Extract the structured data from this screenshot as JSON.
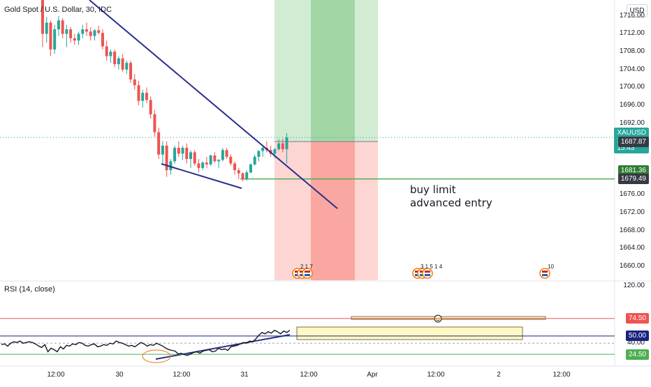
{
  "header": {
    "title": "Gold Spot / U.S. Dollar, 30, IDC",
    "currency": "USD",
    "rsi_title": "RSI (14, close)"
  },
  "annotation": {
    "line1": "buy limit",
    "line2": "advanced entry"
  },
  "price_axis": {
    "ticks": [
      {
        "v": 1716,
        "t": "1716.00"
      },
      {
        "v": 1712,
        "t": "1712.00"
      },
      {
        "v": 1708,
        "t": "1708.00"
      },
      {
        "v": 1704,
        "t": "1704.00"
      },
      {
        "v": 1700,
        "t": "1700.00"
      },
      {
        "v": 1696,
        "t": "1696.00"
      },
      {
        "v": 1692,
        "t": "1692.00"
      },
      {
        "v": 1676,
        "t": "1676.00"
      },
      {
        "v": 1672,
        "t": "1672.00"
      },
      {
        "v": 1668,
        "t": "1668.00"
      },
      {
        "v": 1664,
        "t": "1664.00"
      },
      {
        "v": 1660,
        "t": "1660.00"
      }
    ]
  },
  "rsi_axis": {
    "ticks": [
      {
        "v": 120,
        "t": "120.00"
      },
      {
        "v": 40,
        "t": "40.00"
      }
    ]
  },
  "badges": [
    {
      "name": "xauusd-price-badge",
      "lines": [
        "XAUUSD",
        "1688.82",
        "15:43"
      ],
      "v": 1688.82,
      "color": "#26a69a",
      "axis": "price"
    },
    {
      "name": "stop-price-badge",
      "lines": [
        "1687.87"
      ],
      "v": 1687.87,
      "color": "#363a45",
      "axis": "price"
    },
    {
      "name": "level-1681-badge",
      "lines": [
        "1681.36"
      ],
      "v": 1681.36,
      "color": "#2e7d32",
      "axis": "price"
    },
    {
      "name": "entry-level-badge",
      "lines": [
        "1679.55"
      ],
      "v": 1679.55,
      "color": "#4caf50",
      "axis": "price"
    },
    {
      "name": "level-1679-badge",
      "lines": [
        "1679.49"
      ],
      "v": 1679.49,
      "color": "#363a45",
      "axis": "price"
    },
    {
      "name": "rsi-upper-badge",
      "lines": [
        "74.50"
      ],
      "v": 74.5,
      "color": "#ef5350",
      "axis": "rsi"
    },
    {
      "name": "rsi-mid-badge",
      "lines": [
        "50.00"
      ],
      "v": 50,
      "color": "#1a237e",
      "axis": "rsi"
    },
    {
      "name": "rsi-lower-badge",
      "lines": [
        "24.50"
      ],
      "v": 24.5,
      "color": "#4caf50",
      "axis": "rsi"
    }
  ],
  "time_axis": {
    "ticks": [
      "12:00",
      "30",
      "12:00",
      "31",
      "12:00",
      "Apr",
      "12:00",
      "2",
      "12:00"
    ]
  },
  "event_markers": [
    {
      "group": "events-31",
      "labels": [
        "2",
        "1",
        "7"
      ]
    },
    {
      "group": "events-apr1",
      "labels": [
        "3",
        "1",
        "5",
        "1",
        "4"
      ]
    },
    {
      "group": "events-apr2",
      "labels": [
        "10"
      ]
    }
  ],
  "colors": {
    "up": "#26a69a",
    "down": "#ef5350",
    "trendline": "#2a2e8c",
    "entry_line": "#4caf50",
    "profit_zone": "#4caf50",
    "loss_zone": "#f44336",
    "rsi_line": "#131722",
    "rsi_upper": "#ef5350",
    "rsi_mid": "#1a237e",
    "rsi_lower": "#4caf50"
  },
  "chart_data": [
    {
      "type": "candlestick",
      "title": "Gold Spot / U.S. Dollar, 30, IDC",
      "ylabel": "USD",
      "ylim": [
        1657.5,
        1718
      ],
      "timeframe": "30",
      "candles": [
        [
          1720,
          1721,
          1709,
          1712
        ],
        [
          1712,
          1715.8,
          1710,
          1714.5
        ],
        [
          1714.5,
          1715,
          1707,
          1708.5
        ],
        [
          1708.5,
          1714,
          1707.5,
          1713
        ],
        [
          1713,
          1716,
          1711.5,
          1715
        ],
        [
          1715,
          1715.5,
          1711,
          1712
        ],
        [
          1712,
          1714,
          1709,
          1713
        ],
        [
          1713,
          1713.5,
          1710,
          1711
        ],
        [
          1711,
          1712,
          1709.5,
          1710.5
        ],
        [
          1710.5,
          1712.5,
          1709.5,
          1712
        ],
        [
          1712,
          1714,
          1711,
          1713
        ],
        [
          1713,
          1714.5,
          1711.5,
          1712.5
        ],
        [
          1712.5,
          1713.5,
          1710.5,
          1711.5
        ],
        [
          1711.5,
          1713,
          1710.5,
          1712.8
        ],
        [
          1712.8,
          1713.8,
          1711.8,
          1712.2
        ],
        [
          1712.2,
          1713,
          1708.5,
          1709.2
        ],
        [
          1709.2,
          1710.5,
          1706,
          1707
        ],
        [
          1707,
          1708.5,
          1705.5,
          1708
        ],
        [
          1708,
          1708.5,
          1704.5,
          1705.2
        ],
        [
          1705.2,
          1707,
          1704,
          1706.5
        ],
        [
          1706.5,
          1707.5,
          1703.5,
          1704
        ],
        [
          1704,
          1706,
          1703,
          1705.5
        ],
        [
          1705.5,
          1706,
          1701,
          1701.8
        ],
        [
          1701.8,
          1703,
          1699.5,
          1700.5
        ],
        [
          1700.5,
          1701.5,
          1696,
          1697
        ],
        [
          1697,
          1699.5,
          1695.5,
          1698.8
        ],
        [
          1698.8,
          1700,
          1696.5,
          1697.2
        ],
        [
          1697.2,
          1698,
          1693,
          1694
        ],
        [
          1694,
          1695,
          1689,
          1690
        ],
        [
          1690,
          1691,
          1684,
          1685
        ],
        [
          1685,
          1688,
          1683,
          1687
        ],
        [
          1687,
          1688,
          1680,
          1681.5
        ],
        [
          1681.5,
          1684,
          1680.5,
          1683.5
        ],
        [
          1683.5,
          1687,
          1683,
          1686.5
        ],
        [
          1686.5,
          1688,
          1684.5,
          1685.2
        ],
        [
          1685.2,
          1687,
          1683.8,
          1686.5
        ],
        [
          1686.5,
          1687.5,
          1683,
          1684
        ],
        [
          1684,
          1686,
          1682,
          1685.5
        ],
        [
          1685.5,
          1686,
          1682.5,
          1683
        ],
        [
          1683,
          1684,
          1681,
          1682
        ],
        [
          1682,
          1683.5,
          1681.5,
          1683.2
        ],
        [
          1683.2,
          1684.5,
          1682,
          1682.8
        ],
        [
          1682.8,
          1685,
          1682.5,
          1684.8
        ],
        [
          1684.8,
          1685.5,
          1683.2,
          1683.5
        ],
        [
          1683.5,
          1684,
          1682,
          1683.8
        ],
        [
          1683.8,
          1686.5,
          1683.5,
          1686
        ],
        [
          1686,
          1686.5,
          1684,
          1684.5
        ],
        [
          1684.5,
          1685,
          1682.5,
          1683
        ],
        [
          1683,
          1683.5,
          1680.5,
          1681.5
        ],
        [
          1681.5,
          1682,
          1679.5,
          1680.8
        ],
        [
          1680.8,
          1681,
          1679,
          1679.5
        ],
        [
          1679.5,
          1681.5,
          1679.2,
          1681
        ],
        [
          1681,
          1683,
          1680.8,
          1682.8
        ],
        [
          1682.8,
          1685,
          1682.5,
          1684.5
        ],
        [
          1684.5,
          1686,
          1683.5,
          1685.8
        ],
        [
          1685.8,
          1687,
          1684.5,
          1686.5
        ],
        [
          1686.5,
          1688,
          1685.5,
          1686
        ],
        [
          1686,
          1687,
          1684.5,
          1685.2
        ],
        [
          1685.2,
          1686.5,
          1684.2,
          1686.2
        ],
        [
          1686.2,
          1688.5,
          1685.8,
          1687.5
        ],
        [
          1687.5,
          1688.5,
          1685.5,
          1686.2
        ],
        [
          1686.2,
          1689.8,
          1683,
          1688.8
        ]
      ]
    },
    {
      "type": "line",
      "title": "RSI (14, close)",
      "ylim": [
        10,
        120
      ],
      "hlines": [
        74.5,
        50,
        24.5
      ],
      "values": [
        38,
        39,
        36,
        40,
        42,
        41,
        43,
        40,
        41,
        42,
        41,
        39,
        36,
        34,
        38,
        28,
        33,
        31,
        28,
        35,
        32,
        37,
        36,
        39,
        38,
        41,
        40,
        37,
        36,
        38,
        39,
        35,
        36,
        38,
        37,
        40,
        39,
        43,
        41,
        40,
        38,
        36,
        37,
        35,
        38,
        41,
        39,
        36,
        38,
        37,
        40,
        38,
        36,
        33,
        31,
        30,
        29,
        25,
        26,
        24,
        23,
        25,
        27,
        28,
        26,
        29,
        30,
        31,
        28,
        29,
        33,
        31,
        32,
        30,
        35,
        36,
        37,
        39,
        41,
        40,
        43,
        42,
        46,
        51,
        55,
        53,
        56,
        54,
        58,
        56,
        53,
        57,
        55,
        58
      ]
    }
  ]
}
